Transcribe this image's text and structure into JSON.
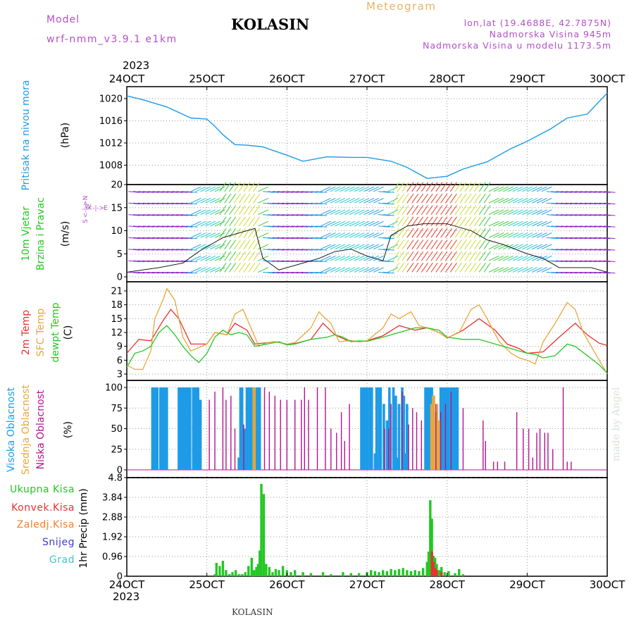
{
  "header": {
    "model_label": "Model",
    "model_name": "wrf-nmm_v3.9.1 e1km",
    "station": "KOLASIN",
    "meteogram_label": "Meteogram",
    "lonlat": "lon,lat (19.4688E, 42.7875N)",
    "altitude": "Nadmorska Visina 945m",
    "altitude_model": "Nadmorska Visina u modelu 1173.5m",
    "year_top": "2023",
    "year_bottom": "2023",
    "footer_station": "KOLASIN",
    "credit": "made by Angel"
  },
  "colors": {
    "pressure": "#1e9be6",
    "temp2m": "#e63232",
    "sfc": "#e6a83c",
    "dewpt": "#23c823",
    "high_cloud": "#1e9be6",
    "mid_cloud": "#e6a83c",
    "low_cloud": "#b4148c",
    "total_precip": "#23c823",
    "conv_precip": "#e63232",
    "freezing_precip": "#f08232",
    "snow": "#3c3cd2",
    "hail": "#3cc8c8",
    "title_purple": "#b450c8",
    "meteogram_orange": "#e6b464"
  },
  "icons": {
    "wind_compass": "wind-direction-compass-icon"
  },
  "chart_data": [
    {
      "type": "line",
      "name": "pressure-panel",
      "x_ticks": [
        "24OCT",
        "25OCT",
        "26OCT",
        "27OCT",
        "28OCT",
        "29OCT",
        "30OCT"
      ],
      "ylabel": [
        "Pritisak na nivou mora",
        "(hPa)"
      ],
      "y_ticks": [
        1008,
        1012,
        1016,
        1020
      ],
      "ylim": [
        1004.5,
        1021.5
      ],
      "grid": true,
      "series": [
        {
          "key": "pressure",
          "x": [
            0,
            0.2,
            0.5,
            0.8,
            1.0,
            1.1,
            1.2,
            1.35,
            1.5,
            1.7,
            2.0,
            2.2,
            2.5,
            2.8,
            3.0,
            3.3,
            3.5,
            3.75,
            4.0,
            4.2,
            4.5,
            4.8,
            5.0,
            5.3,
            5.5,
            5.75,
            6.0
          ],
          "values": [
            1020.5,
            1019.8,
            1018.5,
            1016.5,
            1016.3,
            1015.0,
            1013.5,
            1011.7,
            1011.6,
            1011.3,
            1009.8,
            1008.7,
            1009.5,
            1009.4,
            1009.4,
            1008.7,
            1007.6,
            1005.6,
            1006.0,
            1007.3,
            1008.6,
            1011.0,
            1012.3,
            1014.6,
            1016.5,
            1017.2,
            1021.0
          ]
        }
      ]
    },
    {
      "type": "line",
      "name": "wind-panel",
      "ylabel": [
        "10m Vjetar",
        "Brzina i Pravac",
        "(m/s)"
      ],
      "y_ticks": [
        0,
        5,
        10,
        15,
        20
      ],
      "ylim": [
        -1,
        20
      ],
      "grid": true,
      "direction_legend": {
        "n": "N",
        "e": "E",
        "s": "S",
        "w": "W",
        "arrow": "<-|->"
      },
      "series": [
        {
          "key": "speed",
          "x": [
            0,
            0.4,
            0.7,
            0.9,
            1.0,
            1.1,
            1.2,
            1.4,
            1.6,
            1.7,
            1.9,
            2.0,
            2.2,
            2.4,
            2.6,
            2.8,
            3.0,
            3.2,
            3.3,
            3.5,
            3.7,
            3.9,
            4.0,
            4.3,
            4.5,
            4.7,
            5.0,
            5.2,
            5.4,
            5.6,
            5.8,
            6.0
          ],
          "values": [
            1,
            2,
            3,
            5.5,
            6.5,
            7.5,
            8.5,
            9.5,
            10.5,
            4,
            1.5,
            2,
            3,
            4,
            5.5,
            6,
            4.5,
            3.5,
            9,
            11,
            11.5,
            11.5,
            11.5,
            10,
            8,
            7,
            5,
            4,
            2,
            2,
            2,
            1
          ]
        }
      ]
    },
    {
      "type": "line",
      "name": "temperature-panel",
      "ylabel": [
        "2m Temp",
        "SFC Temp",
        "dewpt Temp",
        "(C)"
      ],
      "y_ticks": [
        3,
        6,
        9,
        12,
        15,
        18,
        21
      ],
      "ylim": [
        2,
        22.5
      ],
      "grid": true,
      "series": [
        {
          "key": "temp2m",
          "x": [
            0,
            0.15,
            0.3,
            0.45,
            0.55,
            0.65,
            0.8,
            1.0,
            1.1,
            1.25,
            1.35,
            1.5,
            1.6,
            1.75,
            1.85,
            2.0,
            2.1,
            2.3,
            2.45,
            2.6,
            2.75,
            2.9,
            3.0,
            3.2,
            3.4,
            3.6,
            3.75,
            3.9,
            4.0,
            4.2,
            4.4,
            4.6,
            4.75,
            4.9,
            5.0,
            5.2,
            5.4,
            5.6,
            5.75,
            5.9,
            6.0
          ],
          "values": [
            7.5,
            10.5,
            10.2,
            14.5,
            17,
            15,
            9.5,
            9.5,
            12,
            11.5,
            14,
            12.5,
            9.5,
            9.8,
            10,
            9.5,
            9.6,
            10.5,
            14,
            11.5,
            10.3,
            10,
            10.2,
            11.3,
            13.5,
            12.5,
            13,
            12,
            10.8,
            12.5,
            15,
            12.5,
            9.5,
            8.5,
            7.5,
            7.8,
            11,
            14,
            11.5,
            9.7,
            9.2
          ]
        },
        {
          "key": "sfc",
          "x": [
            0,
            0.1,
            0.2,
            0.3,
            0.35,
            0.45,
            0.5,
            0.6,
            0.7,
            0.8,
            1.0,
            1.1,
            1.25,
            1.35,
            1.45,
            1.55,
            1.65,
            1.75,
            1.85,
            2.0,
            2.1,
            2.3,
            2.4,
            2.45,
            2.55,
            2.65,
            2.75,
            2.9,
            3.0,
            3.2,
            3.3,
            3.4,
            3.55,
            3.65,
            3.75,
            3.9,
            4.0,
            4.15,
            4.3,
            4.4,
            4.5,
            4.65,
            4.8,
            4.9,
            5.0,
            5.1,
            5.2,
            5.35,
            5.5,
            5.6,
            5.7,
            5.9,
            6.0
          ],
          "values": [
            5,
            4,
            4,
            8,
            15,
            19,
            21.5,
            19,
            11,
            8,
            9.5,
            12,
            11.5,
            16,
            17,
            13,
            9,
            9.8,
            10,
            9.5,
            9.8,
            13,
            16.5,
            15.5,
            14,
            10,
            10.2,
            10,
            10.2,
            13,
            16,
            15,
            16.5,
            13.5,
            13,
            12,
            10.8,
            12,
            17,
            18,
            15,
            10,
            7.5,
            6.5,
            6,
            5.2,
            10,
            14,
            18.5,
            17,
            12,
            6,
            3
          ]
        },
        {
          "key": "dewpt",
          "x": [
            0,
            0.1,
            0.2,
            0.3,
            0.4,
            0.5,
            0.6,
            0.7,
            0.8,
            0.9,
            1.0,
            1.1,
            1.2,
            1.3,
            1.4,
            1.5,
            1.6,
            1.75,
            1.9,
            2.0,
            2.1,
            2.3,
            2.5,
            2.6,
            2.7,
            2.8,
            2.9,
            3.0,
            3.2,
            3.4,
            3.5,
            3.6,
            3.75,
            3.9,
            4.0,
            4.2,
            4.4,
            4.6,
            4.8,
            5.0,
            5.1,
            5.2,
            5.35,
            5.5,
            5.6,
            5.75,
            5.9,
            6.0
          ],
          "values": [
            4.5,
            7.5,
            8,
            9,
            12,
            13.5,
            11.5,
            9,
            7,
            5.5,
            7.5,
            11,
            12.5,
            11.5,
            12,
            11.5,
            9,
            9.5,
            10,
            9.3,
            9.5,
            10.5,
            11,
            11.5,
            11,
            10,
            10.2,
            10.1,
            11,
            12,
            12.5,
            13,
            13,
            12.5,
            11,
            10.5,
            10.5,
            9.5,
            8.5,
            7.5,
            7.3,
            6.5,
            7,
            9.5,
            9,
            7,
            5,
            3.2
          ]
        }
      ]
    },
    {
      "type": "bar",
      "name": "cloud-panel",
      "ylabel": [
        "Visoka Oblacnost",
        "Srednja Oblacnost",
        "Niska Oblacnost",
        "(%)"
      ],
      "y_ticks": [
        0,
        25,
        50,
        75,
        100
      ],
      "ylim": [
        0,
        100
      ],
      "grid": true,
      "series": [
        {
          "key": "high_cloud",
          "x": [
            0.32,
            0.34,
            0.36,
            0.38,
            0.42,
            0.44,
            0.46,
            0.48,
            0.5,
            0.65,
            0.67,
            0.69,
            0.71,
            0.73,
            0.75,
            0.77,
            0.79,
            0.83,
            0.85,
            0.87,
            0.89,
            0.92,
            1.4,
            1.42,
            1.44,
            1.46,
            1.48,
            1.5,
            1.52,
            1.54,
            1.56,
            1.58,
            1.6,
            1.62,
            1.64,
            1.66,
            2.93,
            2.95,
            2.97,
            2.99,
            3.01,
            3.04,
            3.06,
            3.1,
            3.12,
            3.15,
            3.17,
            3.21,
            3.25,
            3.28,
            3.33,
            3.36,
            3.38,
            3.4,
            3.44,
            3.46,
            3.48,
            3.5,
            3.73,
            3.75,
            3.77,
            3.79,
            3.81,
            3.83,
            3.92,
            3.94,
            3.96,
            3.98,
            4.0,
            4.02,
            4.05,
            4.07,
            4.09,
            4.11,
            4.13
          ],
          "values": [
            100,
            100,
            100,
            100,
            100,
            100,
            100,
            100,
            100,
            100,
            100,
            100,
            100,
            100,
            100,
            100,
            100,
            100,
            100,
            100,
            100,
            85,
            15,
            100,
            100,
            30,
            50,
            100,
            100,
            100,
            100,
            100,
            100,
            100,
            100,
            100,
            100,
            100,
            100,
            100,
            100,
            100,
            100,
            20,
            100,
            100,
            100,
            80,
            60,
            100,
            100,
            90,
            15,
            80,
            100,
            90,
            20,
            80,
            100,
            100,
            100,
            100,
            100,
            90,
            100,
            100,
            100,
            100,
            100,
            100,
            100,
            100,
            100,
            100,
            100
          ]
        },
        {
          "key": "mid_cloud",
          "x": [
            1.58,
            1.6,
            3.8,
            3.82,
            3.84,
            3.86,
            3.88,
            3.9
          ],
          "values": [
            100,
            100,
            80,
            90,
            90,
            70,
            80,
            60
          ]
        },
        {
          "key": "low_cloud",
          "x": [
            1.03,
            1.1,
            1.2,
            1.24,
            1.3,
            1.35,
            1.46,
            1.72,
            1.78,
            1.85,
            1.92,
            2.0,
            2.1,
            2.18,
            2.22,
            2.27,
            2.38,
            2.48,
            2.55,
            2.62,
            2.68,
            2.72,
            2.78,
            3.22,
            3.27,
            3.3,
            3.44,
            3.52,
            3.57,
            3.62,
            3.68,
            3.86,
            3.92,
            3.98,
            4.05,
            4.2,
            4.45,
            4.48,
            4.58,
            4.63,
            4.72,
            4.87,
            4.95,
            5.02,
            5.07,
            5.12,
            5.16,
            5.22,
            5.26,
            5.32,
            5.45,
            5.5,
            5.55
          ],
          "values": [
            85,
            95,
            100,
            85,
            90,
            50,
            55,
            100,
            95,
            90,
            85,
            85,
            85,
            85,
            100,
            85,
            100,
            100,
            50,
            45,
            70,
            35,
            80,
            50,
            50,
            80,
            95,
            55,
            75,
            70,
            60,
            80,
            70,
            80,
            95,
            75,
            60,
            35,
            10,
            10,
            10,
            70,
            50,
            50,
            15,
            45,
            50,
            45,
            45,
            25,
            100,
            10,
            10
          ]
        }
      ]
    },
    {
      "type": "bar",
      "name": "precip-panel",
      "x_ticks": [
        "24OCT",
        "25OCT",
        "26OCT",
        "27OCT",
        "28OCT",
        "29OCT",
        "30OCT"
      ],
      "ylabel": [
        "Ukupna Kisa",
        "Konvek.Kisa",
        "Zaledj.Kisa",
        "Snijeg",
        "Grad",
        "1hr Precip (mm)"
      ],
      "y_ticks": [
        0,
        0.96,
        1.92,
        2.88,
        3.84,
        4.8
      ],
      "ylim": [
        0,
        4.8
      ],
      "grid": true,
      "series": [
        {
          "key": "total_precip",
          "x": [
            1.1,
            1.12,
            1.16,
            1.2,
            1.24,
            1.28,
            1.32,
            1.36,
            1.4,
            1.44,
            1.48,
            1.52,
            1.56,
            1.59,
            1.62,
            1.64,
            1.66,
            1.68,
            1.71,
            1.74,
            1.78,
            1.82,
            1.86,
            1.9,
            1.95,
            2.0,
            2.05,
            2.1,
            2.2,
            2.3,
            2.45,
            2.55,
            2.7,
            2.8,
            2.9,
            3.0,
            3.05,
            3.1,
            3.15,
            3.2,
            3.25,
            3.3,
            3.35,
            3.4,
            3.45,
            3.5,
            3.55,
            3.6,
            3.65,
            3.7,
            3.75,
            3.77,
            3.79,
            3.81,
            3.83,
            3.85,
            3.87,
            3.9,
            3.93,
            3.97,
            4.02,
            4.1,
            4.15,
            4.2
          ],
          "values": [
            0.1,
            0.65,
            0.5,
            0.75,
            0.3,
            0.1,
            0.2,
            0.3,
            0.1,
            0.1,
            0.2,
            0.5,
            0.9,
            0.3,
            0.45,
            0.6,
            1.25,
            4.5,
            4.0,
            0.6,
            0.45,
            0.2,
            0.35,
            0.3,
            0.5,
            0.3,
            0.2,
            0.3,
            0.2,
            0.15,
            0.2,
            0.1,
            0.2,
            0.15,
            0.15,
            0.2,
            0.3,
            0.25,
            0.2,
            0.3,
            0.25,
            0.35,
            0.3,
            0.35,
            0.4,
            0.3,
            0.25,
            0.3,
            0.25,
            0.4,
            0.7,
            1.2,
            3.7,
            2.8,
            1.0,
            0.9,
            0.6,
            0.3,
            0.45,
            0.2,
            0.25,
            0.15,
            0.35,
            0.1
          ]
        },
        {
          "key": "conv_precip",
          "x": [
            3.81,
            3.83,
            3.85,
            3.87,
            3.93
          ],
          "values": [
            1.2,
            0.7,
            0.4,
            0.3,
            0.2
          ]
        }
      ]
    }
  ]
}
